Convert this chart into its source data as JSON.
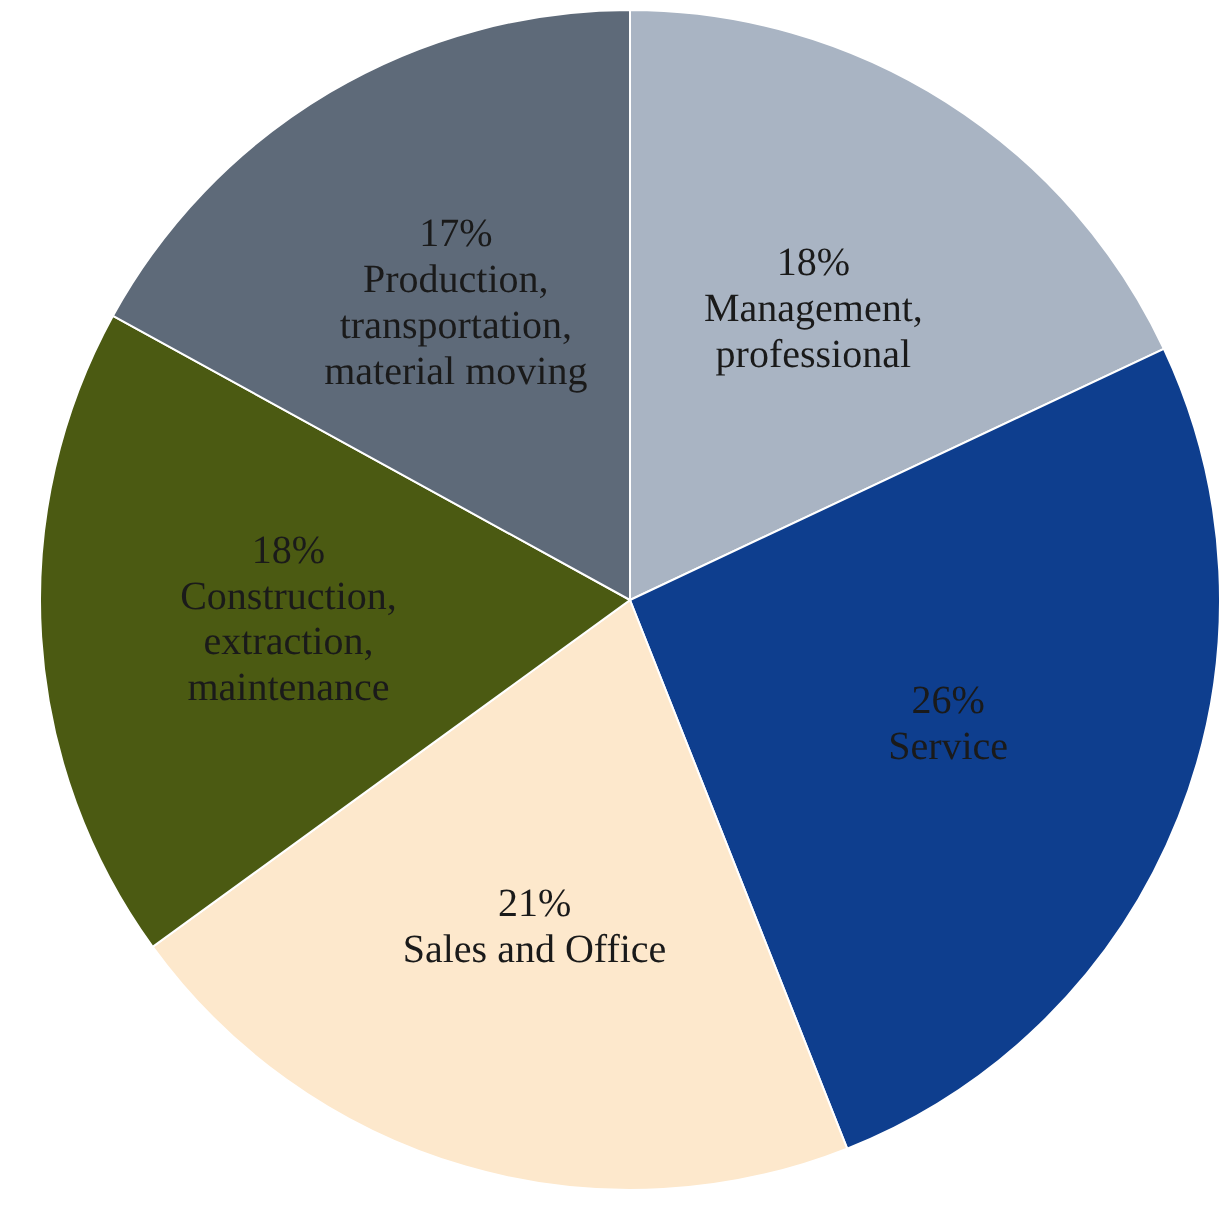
{
  "chart_data": {
    "type": "pie",
    "categories": [
      "Management, professional",
      "Service",
      "Sales and Office",
      "Construction, extraction, maintenance",
      "Production, transportation, material moving"
    ],
    "values": [
      18,
      26,
      21,
      18,
      17
    ],
    "value_labels": [
      "18%",
      "26%",
      "21%",
      "18%",
      "17%"
    ],
    "colors": [
      "#a9b4c3",
      "#0e3e8e",
      "#fde8cc",
      "#4b5a12",
      "#5e6a79"
    ]
  }
}
